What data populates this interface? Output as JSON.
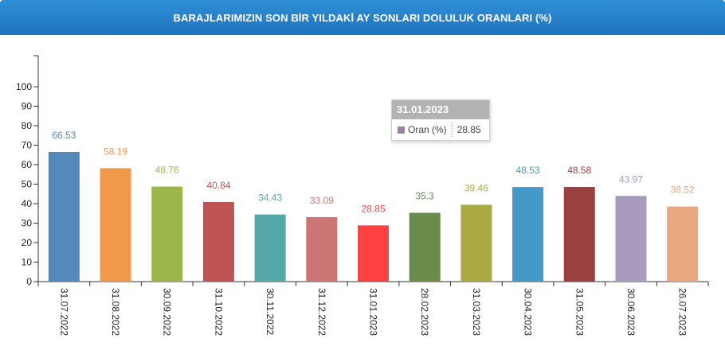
{
  "header": {
    "title": "BARAJLARIMIZIN SON BİR YILDAKİ AY SONLARI DOLULUK ORANLARI (%)"
  },
  "tooltip": {
    "date": "31.01.2023",
    "series_label": "Oran (%)",
    "value": "28.85",
    "color": "#a07fa8"
  },
  "chart_data": {
    "type": "bar",
    "title": "BARAJLARIMIZIN SON BİR YILDAKİ AY SONLARI DOLULUK ORANLARI (%)",
    "categories": [
      "31.07.2022",
      "31.08.2022",
      "30.09.2022",
      "31.10.2022",
      "30.11.2022",
      "31.12.2022",
      "31.01.2023",
      "28.02.2023",
      "31.03.2023",
      "30.04.2023",
      "31.05.2023",
      "30.06.2023",
      "26.07.2023"
    ],
    "values": [
      66.53,
      58.19,
      48.76,
      40.84,
      34.43,
      33.09,
      28.85,
      35.3,
      39.46,
      48.53,
      48.58,
      43.97,
      38.52
    ],
    "labels": [
      "66.53",
      "58.19",
      "48.76",
      "40.84",
      "34.43",
      "33.09",
      "28.85",
      "35.3",
      "39.46",
      "48.53",
      "48.58",
      "43.97",
      "38.52"
    ],
    "colors": [
      "#5588bb",
      "#f0994a",
      "#9bb64a",
      "#bf5454",
      "#55a8a8",
      "#cc7575",
      "#ff4040",
      "#6b8b4a",
      "#aaaa44",
      "#4499c8",
      "#9a4040",
      "#a99bbd",
      "#e8a880"
    ],
    "yticks": [
      0,
      10,
      20,
      30,
      40,
      50,
      60,
      70,
      80,
      90,
      100
    ],
    "ylim": [
      0,
      115
    ],
    "grid": false,
    "legend": "none"
  }
}
